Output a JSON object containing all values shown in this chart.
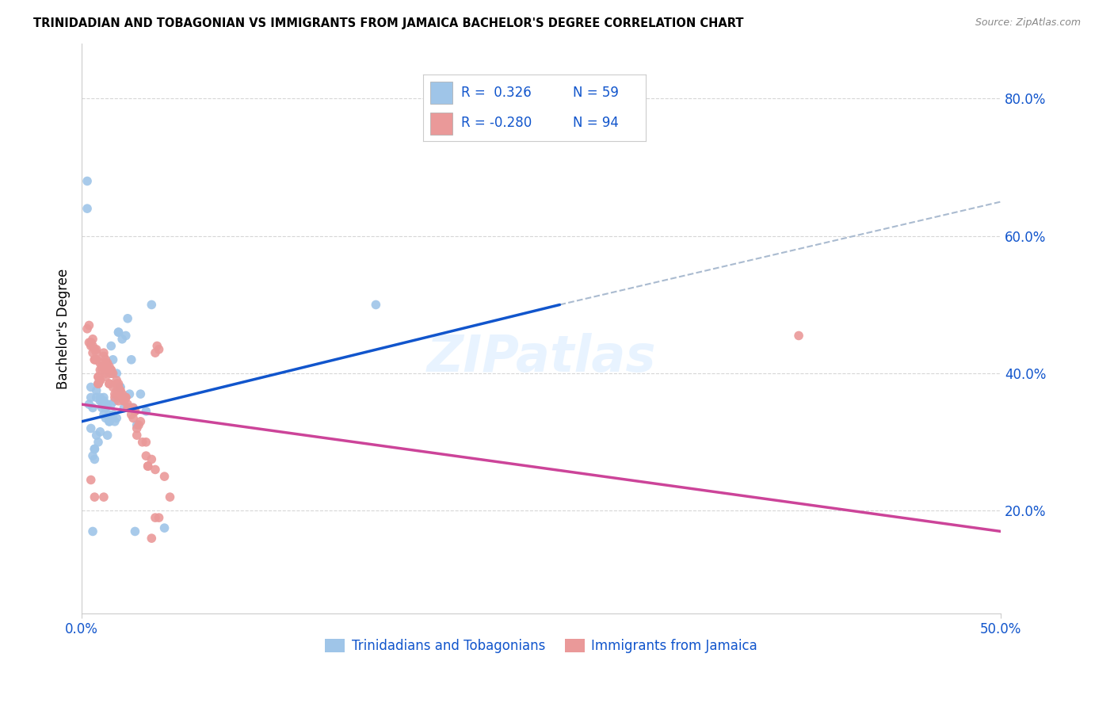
{
  "title": "TRINIDADIAN AND TOBAGONIAN VS IMMIGRANTS FROM JAMAICA BACHELOR'S DEGREE CORRELATION CHART",
  "source": "Source: ZipAtlas.com",
  "ylabel": "Bachelor's Degree",
  "xlim": [
    0.0,
    50.0
  ],
  "ylim": [
    5.0,
    88.0
  ],
  "yticks_right": [
    20.0,
    40.0,
    60.0,
    80.0
  ],
  "xtick_positions": [
    0.0,
    50.0
  ],
  "xtick_labels": [
    "0.0%",
    "50.0%"
  ],
  "blue_color": "#9fc5e8",
  "pink_color": "#ea9999",
  "blue_line_color": "#1155cc",
  "pink_line_color": "#cc4499",
  "dashed_line_color": "#aabbd0",
  "label_color": "#1155cc",
  "series1_name": "Trinidadians and Tobagonians",
  "series2_name": "Immigrants from Jamaica",
  "blue_line_x0": 0.0,
  "blue_line_y0": 33.0,
  "blue_line_x1": 26.0,
  "blue_line_y1": 50.0,
  "pink_line_x0": 0.0,
  "pink_line_y0": 35.5,
  "pink_line_x1": 50.0,
  "pink_line_y1": 17.0,
  "dashed_line_x0": 26.0,
  "dashed_line_y0": 50.0,
  "dashed_line_x1": 50.0,
  "dashed_line_y1": 65.0,
  "blue_points_x": [
    0.3,
    0.5,
    0.6,
    0.7,
    0.8,
    0.9,
    1.0,
    1.1,
    1.2,
    1.3,
    1.4,
    1.5,
    1.6,
    1.7,
    1.8,
    1.9,
    2.0,
    2.1,
    2.2,
    2.3,
    2.4,
    2.5,
    2.6,
    2.7,
    2.8,
    3.0,
    3.2,
    3.5,
    3.8,
    4.5,
    0.4,
    0.6,
    0.7,
    0.8,
    0.9,
    1.0,
    1.1,
    1.2,
    1.3,
    1.5,
    1.6,
    1.8,
    1.9,
    2.0,
    0.5,
    1.4,
    0.3,
    0.6,
    0.8,
    1.7,
    2.1,
    1.5,
    2.9,
    16.0,
    0.5,
    0.7,
    1.0,
    1.2,
    1.3
  ],
  "blue_points_y": [
    68.0,
    32.0,
    28.0,
    29.0,
    31.0,
    30.0,
    36.5,
    35.0,
    34.0,
    33.5,
    35.5,
    34.0,
    44.0,
    42.0,
    36.0,
    40.0,
    46.0,
    38.0,
    45.0,
    35.0,
    45.5,
    48.0,
    37.0,
    42.0,
    35.0,
    32.5,
    37.0,
    34.5,
    50.0,
    17.5,
    35.5,
    17.0,
    27.5,
    37.5,
    38.5,
    36.0,
    36.0,
    36.0,
    35.0,
    33.0,
    35.5,
    33.0,
    33.5,
    46.0,
    38.0,
    31.0,
    64.0,
    35.0,
    36.5,
    34.0,
    38.0,
    33.0,
    17.0,
    50.0,
    36.5,
    29.0,
    31.5,
    36.5,
    35.0
  ],
  "pink_points_x": [
    0.3,
    0.4,
    0.5,
    0.5,
    0.5,
    0.6,
    0.6,
    0.7,
    0.7,
    0.7,
    0.8,
    0.8,
    0.8,
    0.9,
    0.9,
    1.0,
    1.0,
    1.1,
    1.1,
    1.2,
    1.2,
    1.3,
    1.3,
    1.4,
    1.5,
    1.5,
    1.6,
    1.6,
    1.7,
    1.8,
    1.8,
    1.9,
    1.9,
    2.0,
    2.0,
    2.1,
    2.2,
    2.3,
    2.4,
    2.5,
    2.6,
    2.7,
    2.8,
    2.9,
    3.0,
    3.1,
    3.2,
    3.3,
    3.5,
    3.5,
    3.6,
    3.8,
    4.0,
    4.0,
    4.1,
    4.2,
    4.5,
    4.8,
    0.5,
    0.6,
    0.8,
    0.9,
    1.0,
    1.1,
    1.2,
    1.3,
    1.4,
    1.5,
    1.6,
    1.7,
    1.9,
    2.0,
    2.0,
    2.1,
    2.2,
    2.3,
    2.4,
    2.5,
    2.8,
    3.0,
    3.8,
    4.2,
    0.4,
    0.7,
    1.0,
    1.3,
    1.6,
    1.9,
    2.2,
    2.9,
    3.6,
    4.0,
    0.9,
    39.0
  ],
  "pink_points_y": [
    46.5,
    47.0,
    44.0,
    44.5,
    24.5,
    45.0,
    44.0,
    43.5,
    42.0,
    22.0,
    43.5,
    42.0,
    43.0,
    39.5,
    38.5,
    39.0,
    40.5,
    40.5,
    41.0,
    42.5,
    22.0,
    42.0,
    40.0,
    41.5,
    38.5,
    41.0,
    40.5,
    40.0,
    38.0,
    37.0,
    36.5,
    38.5,
    37.0,
    38.0,
    36.0,
    37.5,
    36.5,
    36.0,
    36.5,
    35.5,
    35.0,
    34.0,
    33.5,
    34.5,
    32.0,
    32.5,
    33.0,
    30.0,
    30.0,
    28.0,
    26.5,
    27.5,
    26.0,
    19.0,
    44.0,
    19.0,
    25.0,
    22.0,
    44.5,
    43.0,
    42.0,
    39.5,
    39.0,
    41.0,
    43.0,
    41.5,
    40.5,
    38.5,
    40.0,
    40.0,
    37.5,
    38.5,
    38.0,
    37.5,
    37.0,
    36.0,
    36.5,
    35.0,
    35.0,
    31.0,
    16.0,
    43.5,
    44.5,
    42.0,
    41.5,
    39.5,
    40.5,
    39.0,
    36.5,
    34.5,
    26.5,
    43.0,
    38.5,
    45.5
  ]
}
